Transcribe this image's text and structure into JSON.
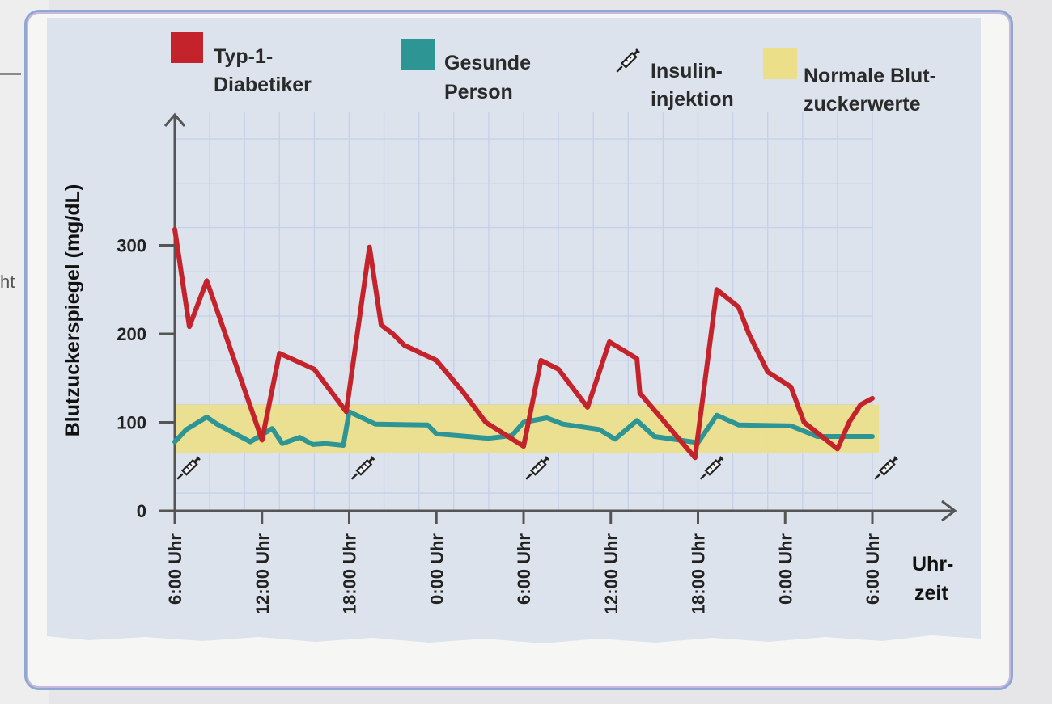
{
  "page": {
    "margin_fragment": "ht"
  },
  "legend": [
    {
      "key": "diabetic",
      "line1": "Typ-1-",
      "line2": "Diabetiker",
      "color": "#c4232b"
    },
    {
      "key": "healthy",
      "line1": "Gesunde",
      "line2": "Person",
      "color": "#2e9595"
    },
    {
      "key": "injection",
      "line1": "Insulin-",
      "line2": "injektion",
      "icon": "syringe-icon"
    },
    {
      "key": "normal",
      "line1": "Normale Blut-",
      "line2": "zuckerwerte",
      "color": "#ecdf8a"
    }
  ],
  "colors": {
    "panel": "#dde3ec",
    "grid": "#c6d1ea",
    "axis": "#555555",
    "band": "#ecdf8a",
    "diabetic": "#c4232b",
    "healthy": "#2e9595"
  },
  "chart_data": {
    "type": "line",
    "title": "",
    "xlabel": "Uhr-zeit",
    "xlabel_lines": [
      "Uhr-",
      "zeit"
    ],
    "ylabel": "Blutzuckerspiegel (mg/dL)",
    "xlim": [
      0,
      48
    ],
    "ylim": [
      0,
      400
    ],
    "x_ticks": [
      {
        "x": 0,
        "label": "6:00 Uhr"
      },
      {
        "x": 6,
        "label": "12:00 Uhr"
      },
      {
        "x": 12,
        "label": "18:00 Uhr"
      },
      {
        "x": 18,
        "label": "0:00 Uhr"
      },
      {
        "x": 24,
        "label": "6:00 Uhr"
      },
      {
        "x": 30,
        "label": "12:00 Uhr"
      },
      {
        "x": 36,
        "label": "18:00 Uhr"
      },
      {
        "x": 42,
        "label": "0:00 Uhr"
      },
      {
        "x": 48,
        "label": "6:00 Uhr"
      }
    ],
    "y_ticks": [
      {
        "y": 0,
        "label": "0"
      },
      {
        "y": 100,
        "label": "100"
      },
      {
        "y": 200,
        "label": "200"
      },
      {
        "y": 300,
        "label": "300"
      }
    ],
    "normal_range": [
      65,
      120
    ],
    "injections_x": [
      0,
      12,
      24,
      36,
      48
    ],
    "series": [
      {
        "name": "Typ-1-Diabetiker",
        "color": "#c4232b",
        "x": [
          0,
          1,
          2.2,
          6,
          7.2,
          9.6,
          11.8,
          13.4,
          14.2,
          15,
          15.8,
          18,
          19.8,
          21.4,
          24,
          25.2,
          26.4,
          28.4,
          29.9,
          31.8,
          32,
          35.8,
          37.3,
          38.8,
          39.5,
          40.8,
          42.4,
          43.3,
          45.6,
          46.4,
          47.2,
          48
        ],
        "y": [
          318,
          208,
          260,
          80,
          178,
          160,
          112,
          298,
          210,
          200,
          187,
          170,
          135,
          100,
          73,
          170,
          160,
          117,
          191,
          172,
          133,
          60,
          250,
          230,
          200,
          157,
          140,
          100,
          70,
          100,
          120,
          127
        ]
      },
      {
        "name": "Gesunde Person",
        "color": "#2e9595",
        "x": [
          0,
          0.8,
          2.2,
          2.9,
          3.6,
          5.2,
          6.7,
          7.4,
          8.6,
          9.5,
          10.4,
          11.6,
          12,
          13.8,
          17.4,
          18,
          21.6,
          23.2,
          24,
          25.6,
          26.7,
          29.2,
          30.3,
          31.8,
          33,
          36,
          37.3,
          38.8,
          42.4,
          44.2,
          48
        ],
        "y": [
          78,
          92,
          106,
          98,
          92,
          78,
          93,
          76,
          83,
          75,
          76,
          74,
          112,
          98,
          97,
          87,
          82,
          85,
          100,
          105,
          98,
          92,
          81,
          102,
          84,
          77,
          108,
          97,
          96,
          84,
          84
        ]
      }
    ]
  }
}
